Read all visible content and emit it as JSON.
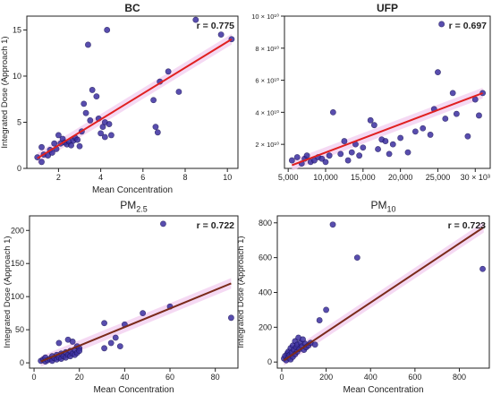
{
  "chart_data": [
    {
      "type": "scatter",
      "title": "BC",
      "title_bold": true,
      "annotation": "r = 0.775",
      "xlabel": "Mean Concentration",
      "ylabel": "Integrated Dose (Approach 1)",
      "xlim": [
        0.5,
        10.5
      ],
      "ylim": [
        0,
        16.5
      ],
      "xticks": [
        2,
        4,
        6,
        8,
        10
      ],
      "xtick_labels": [
        "2",
        "4",
        "6",
        "8",
        "10"
      ],
      "yticks": [
        0,
        5,
        10,
        15
      ],
      "ytick_labels": [
        "0",
        "5",
        "10",
        "15"
      ],
      "point_color": "#3b2fa0",
      "line_color": "#e02020",
      "band_color": "#f2d0f0",
      "fit": {
        "x": [
          1.0,
          10.2
        ],
        "y": [
          1.1,
          14.0
        ]
      },
      "points": [
        [
          1.0,
          1.2
        ],
        [
          1.2,
          0.7
        ],
        [
          1.3,
          1.5
        ],
        [
          1.2,
          2.3
        ],
        [
          1.5,
          1.4
        ],
        [
          1.6,
          2.0
        ],
        [
          1.7,
          1.7
        ],
        [
          1.8,
          2.7
        ],
        [
          1.9,
          2.1
        ],
        [
          2.0,
          3.6
        ],
        [
          2.1,
          2.7
        ],
        [
          2.2,
          3.2
        ],
        [
          2.3,
          2.8
        ],
        [
          2.4,
          2.6
        ],
        [
          2.5,
          2.9
        ],
        [
          2.6,
          2.5
        ],
        [
          2.7,
          3.0
        ],
        [
          2.8,
          3.3
        ],
        [
          2.9,
          3.1
        ],
        [
          3.0,
          2.4
        ],
        [
          3.1,
          4.0
        ],
        [
          3.2,
          7.0
        ],
        [
          3.3,
          6.0
        ],
        [
          3.4,
          13.4
        ],
        [
          3.5,
          5.2
        ],
        [
          3.6,
          8.5
        ],
        [
          3.8,
          7.8
        ],
        [
          3.9,
          5.4
        ],
        [
          4.0,
          3.8
        ],
        [
          4.1,
          4.5
        ],
        [
          4.2,
          5.0
        ],
        [
          4.3,
          15.0
        ],
        [
          4.4,
          4.8
        ],
        [
          4.5,
          3.6
        ],
        [
          4.2,
          3.4
        ],
        [
          6.5,
          7.4
        ],
        [
          6.6,
          4.5
        ],
        [
          6.7,
          3.9
        ],
        [
          6.8,
          9.4
        ],
        [
          7.2,
          10.5
        ],
        [
          7.7,
          8.3
        ],
        [
          8.5,
          16.1
        ],
        [
          9.7,
          14.5
        ],
        [
          10.2,
          14.0
        ]
      ]
    },
    {
      "type": "scatter",
      "title": "UFP",
      "title_bold": true,
      "annotation": "r = 0.697",
      "xlabel": "",
      "ylabel": "",
      "xlim": [
        4500,
        32000
      ],
      "ylim": [
        5000000000.0,
        100000000000.0
      ],
      "xtick_labels": [
        "5,000",
        "10,000",
        "15,000",
        "20,000",
        "25,000",
        "30 × 10³"
      ],
      "xticks": [
        5000,
        10000,
        15000,
        20000,
        25000,
        30000
      ],
      "ytick_labels": [
        "2 × 10¹⁰",
        "4 × 10¹⁰",
        "6 × 10¹⁰",
        "8 × 10¹⁰",
        "10 × 10¹⁰"
      ],
      "yticks": [
        20000000000.0,
        40000000000.0,
        60000000000.0,
        80000000000.0,
        100000000000.0
      ],
      "point_color": "#3b2fa0",
      "line_color": "#e02020",
      "band_color": "#f2d0f0",
      "fit": {
        "x": [
          5500,
          31000
        ],
        "y": [
          7000000000.0,
          52000000000.0
        ]
      },
      "points": [
        [
          5500,
          10000000000.0
        ],
        [
          6200,
          12000000000.0
        ],
        [
          6800,
          8000000000.0
        ],
        [
          7200,
          11000000000.0
        ],
        [
          7500,
          13000000000.0
        ],
        [
          8000,
          9000000000.0
        ],
        [
          8500,
          10000000000.0
        ],
        [
          9000,
          12000000000.0
        ],
        [
          9500,
          11000000000.0
        ],
        [
          10000,
          9000000000.0
        ],
        [
          10500,
          13000000000.0
        ],
        [
          11000,
          40000000000.0
        ],
        [
          12000,
          14000000000.0
        ],
        [
          12500,
          22000000000.0
        ],
        [
          13000,
          10000000000.0
        ],
        [
          13500,
          15000000000.0
        ],
        [
          14000,
          20000000000.0
        ],
        [
          14500,
          13000000000.0
        ],
        [
          15000,
          18000000000.0
        ],
        [
          16000,
          35000000000.0
        ],
        [
          16500,
          32000000000.0
        ],
        [
          17000,
          17000000000.0
        ],
        [
          17500,
          23000000000.0
        ],
        [
          18000,
          22000000000.0
        ],
        [
          18500,
          14000000000.0
        ],
        [
          19000,
          20000000000.0
        ],
        [
          20000,
          24000000000.0
        ],
        [
          21000,
          15000000000.0
        ],
        [
          22000,
          28000000000.0
        ],
        [
          23000,
          30000000000.0
        ],
        [
          24000,
          26000000000.0
        ],
        [
          24500,
          42000000000.0
        ],
        [
          25000,
          65000000000.0
        ],
        [
          25500,
          95000000000.0
        ],
        [
          26000,
          36000000000.0
        ],
        [
          27000,
          52000000000.0
        ],
        [
          27500,
          39000000000.0
        ],
        [
          29000,
          25000000000.0
        ],
        [
          30000,
          48000000000.0
        ],
        [
          30500,
          38000000000.0
        ],
        [
          31000,
          52000000000.0
        ]
      ]
    },
    {
      "type": "scatter",
      "title_main": "PM",
      "title_sub": "2.5",
      "title_bold": false,
      "annotation": "r = 0.722",
      "xlabel": "Mean Concentration",
      "ylabel": "Integrated Dose (Approach 1)",
      "xlim": [
        -2,
        90
      ],
      "ylim": [
        -8,
        222
      ],
      "xticks": [
        0,
        20,
        40,
        60,
        80
      ],
      "xtick_labels": [
        "0",
        "20",
        "40",
        "60",
        "80"
      ],
      "yticks": [
        0,
        50,
        100,
        150,
        200
      ],
      "ytick_labels": [
        "0",
        "50",
        "100",
        "150",
        "200"
      ],
      "point_color": "#3b2fa0",
      "line_color": "#7a2a1a",
      "band_color": "#f2d0f0",
      "fit": {
        "x": [
          3,
          87
        ],
        "y": [
          2,
          120
        ]
      },
      "points": [
        [
          3,
          3
        ],
        [
          4,
          5
        ],
        [
          5,
          2
        ],
        [
          5,
          8
        ],
        [
          6,
          4
        ],
        [
          7,
          6
        ],
        [
          8,
          10
        ],
        [
          8,
          3
        ],
        [
          9,
          7
        ],
        [
          10,
          12
        ],
        [
          10,
          5
        ],
        [
          11,
          8
        ],
        [
          12,
          14
        ],
        [
          12,
          6
        ],
        [
          13,
          10
        ],
        [
          14,
          16
        ],
        [
          14,
          8
        ],
        [
          15,
          12
        ],
        [
          15,
          35
        ],
        [
          16,
          18
        ],
        [
          16,
          10
        ],
        [
          17,
          14
        ],
        [
          17,
          32
        ],
        [
          18,
          20
        ],
        [
          18,
          12
        ],
        [
          19,
          15
        ],
        [
          19,
          25
        ],
        [
          20,
          22
        ],
        [
          20,
          18
        ],
        [
          11,
          30
        ],
        [
          31,
          22
        ],
        [
          31,
          60
        ],
        [
          34,
          30
        ],
        [
          36,
          38
        ],
        [
          38,
          25
        ],
        [
          40,
          58
        ],
        [
          48,
          75
        ],
        [
          57,
          210
        ],
        [
          60,
          85
        ],
        [
          87,
          68
        ]
      ]
    },
    {
      "type": "scatter",
      "title_main": "PM",
      "title_sub": "10",
      "title_bold": false,
      "annotation": "r = 0.723",
      "xlabel": "Mean Concentration",
      "ylabel": "Integrated Dose (Approach 1)",
      "xlim": [
        -20,
        935
      ],
      "ylim": [
        -35,
        840
      ],
      "xticks": [
        0,
        200,
        400,
        600,
        800
      ],
      "xtick_labels": [
        "0",
        "200",
        "400",
        "600",
        "800"
      ],
      "yticks": [
        0,
        200,
        400,
        600,
        800
      ],
      "ytick_labels": [
        "0",
        "200",
        "400",
        "600",
        "800"
      ],
      "point_color": "#3b2fa0",
      "line_color": "#7a2a1a",
      "band_color": "#f2d0f0",
      "fit": {
        "x": [
          10,
          910
        ],
        "y": [
          10,
          775
        ]
      },
      "points": [
        [
          10,
          20
        ],
        [
          15,
          35
        ],
        [
          20,
          10
        ],
        [
          25,
          50
        ],
        [
          30,
          25
        ],
        [
          30,
          60
        ],
        [
          35,
          40
        ],
        [
          40,
          80
        ],
        [
          40,
          15
        ],
        [
          45,
          55
        ],
        [
          50,
          95
        ],
        [
          50,
          30
        ],
        [
          55,
          70
        ],
        [
          60,
          120
        ],
        [
          60,
          45
        ],
        [
          65,
          85
        ],
        [
          70,
          100
        ],
        [
          70,
          60
        ],
        [
          75,
          140
        ],
        [
          80,
          75
        ],
        [
          85,
          110
        ],
        [
          90,
          90
        ],
        [
          95,
          130
        ],
        [
          100,
          70
        ],
        [
          105,
          105
        ],
        [
          110,
          85
        ],
        [
          120,
          95
        ],
        [
          130,
          110
        ],
        [
          150,
          100
        ],
        [
          170,
          240
        ],
        [
          200,
          300
        ],
        [
          230,
          790
        ],
        [
          340,
          600
        ],
        [
          905,
          535
        ]
      ]
    }
  ]
}
